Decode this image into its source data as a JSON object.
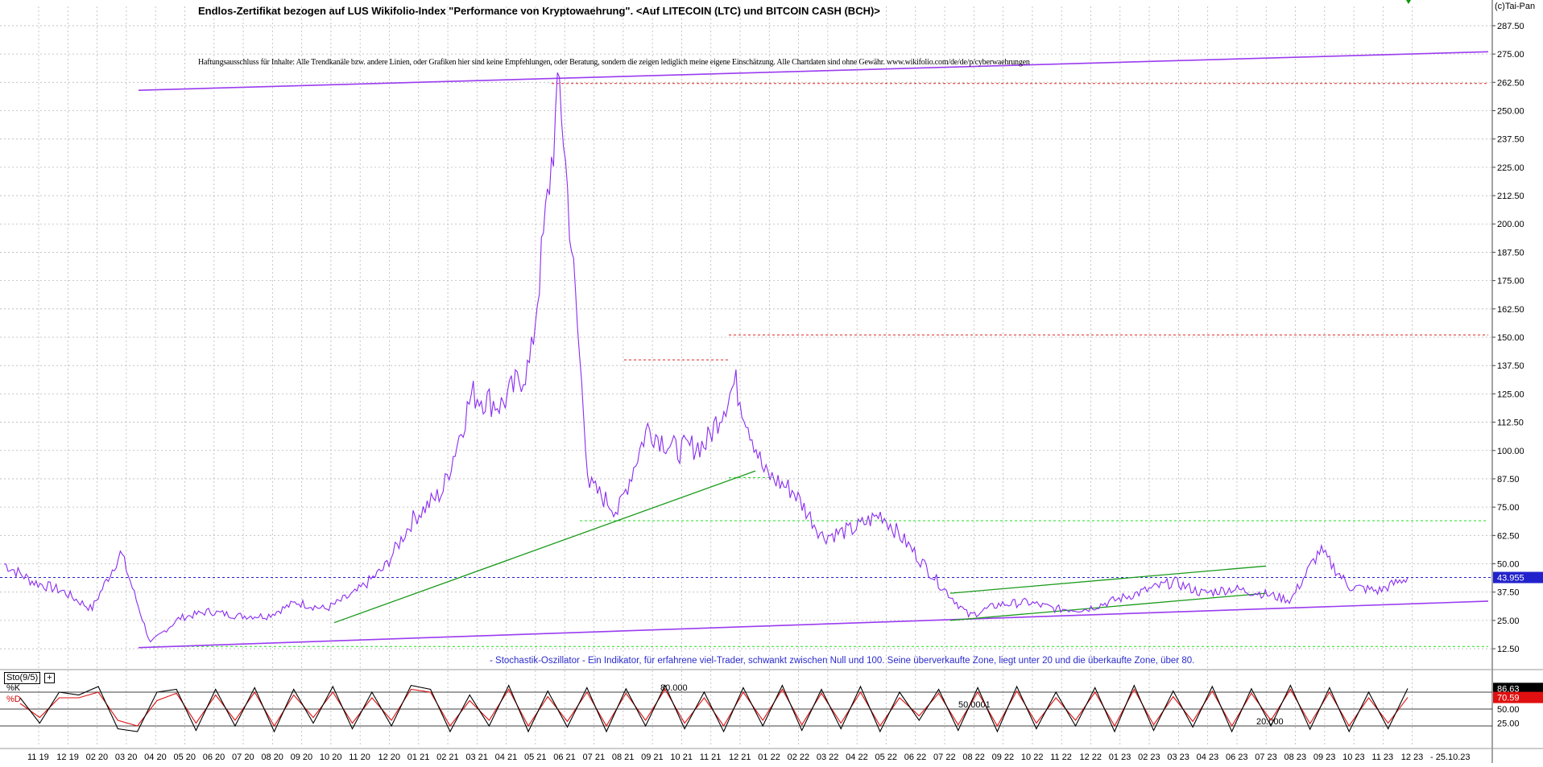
{
  "header": {
    "title": "Endlos-Zertifikat bezogen auf LUS Wikifolio-Index \"Performance von Kryptowaehrung\". <Auf LITECOIN (LTC) und BITCOIN CASH (BCH)>",
    "disclaimer": "Haftungsausschluss für Inhalte: Alle Trendkanäle bzw. andere Linien, oder Grafiken hier sind keine Empfehlungen, oder Beratung, sondern die zeigen lediglich meine eigene Einschätzung. Alle Chartdaten sind ohne Gewähr. www.wikifolio.com/de/de/p/cyberwaehrungen",
    "copyright": "(c)Tai-Pan"
  },
  "oscillator": {
    "caption": "- Stochastik-Oszillator - Ein Indikator, für erfahrene viel-Trader, schwankt zwischen Null und 100. Seine überverkaufte Zone, liegt unter 20 und die überkaufte Zone, über 80.",
    "name": "Sto(9/5)",
    "k_label": "%K",
    "d_label": "%D",
    "level_labels": [
      "80.000",
      "50.0001",
      "20.000"
    ]
  },
  "colors": {
    "price": "#8b2cf0",
    "trendline": "#9a3cf0",
    "support": "#1a9a1a",
    "red_dotted": "#e02020",
    "green_dotted": "#22dd22",
    "blue_dotted": "#2222cc",
    "stoch_k": "#000000",
    "stoch_d": "#e01010",
    "grid": "#b8b8b8",
    "arrow": "#0a9a0a"
  },
  "chart_data": [
    {
      "type": "line",
      "title": "Endlos-Zertifikat bezogen auf LUS Wikifolio-Index \"Performance von Kryptowaehrung\". <Auf LITECOIN (LTC) und BITCOIN CASH (BCH)>",
      "xlabel": "",
      "ylabel": "",
      "ylim": [
        4,
        296
      ],
      "yticks": [
        "12.50",
        "25.00",
        "37.50",
        "50.00",
        "62.50",
        "75.00",
        "87.50",
        "100.00",
        "112.50",
        "125.00",
        "137.50",
        "150.00",
        "162.50",
        "175.00",
        "187.50",
        "200.00",
        "212.50",
        "225.00",
        "237.50",
        "250.00",
        "262.50",
        "275.00",
        "287.50"
      ],
      "x_tick_labels": [
        "11 19",
        "12 19",
        "02 20",
        "03 20",
        "04 20",
        "05 20",
        "06 20",
        "07 20",
        "08 20",
        "09 20",
        "10 20",
        "11 20",
        "12 20",
        "01 21",
        "02 21",
        "03 21",
        "04 21",
        "05 21",
        "06 21",
        "07 21",
        "08 21",
        "09 21",
        "10 21",
        "11 21",
        "12 21",
        "01 22",
        "02 22",
        "03 22",
        "04 22",
        "05 22",
        "06 22",
        "07 22",
        "08 22",
        "09 22",
        "10 22",
        "11 22",
        "12 22",
        "01 23",
        "02 23",
        "03 23",
        "04 23",
        "06 23",
        "07 23",
        "08 23",
        "09 23",
        "10 23",
        "11 23",
        "12 23",
        "- 25.10.23"
      ],
      "current_value_label": "43.955",
      "current_value": 43.955,
      "series": [
        {
          "x": [
            "10 19",
            "11 19",
            "12 19",
            "01 20",
            "02 20",
            "03 20",
            "04 20",
            "05 20",
            "06 20",
            "07 20",
            "08 20",
            "09 20",
            "10 20",
            "11 20",
            "12 20",
            "01 21",
            "02 21",
            "03 21",
            "04 21",
            "05 21",
            "06 21",
            "07 21",
            "08 21",
            "09 21",
            "10 21",
            "11 21",
            "12 21",
            "01 22",
            "02 22",
            "03 22",
            "04 22",
            "05 22",
            "06 22",
            "07 22",
            "08 22",
            "09 22",
            "10 22",
            "11 22",
            "12 22",
            "01 23",
            "02 23",
            "03 23",
            "04 23",
            "05 23",
            "06 23",
            "07 23",
            "08 23",
            "09 23",
            "10 23"
          ],
          "values": [
            50,
            42,
            38,
            30,
            55,
            15,
            26,
            29,
            27,
            27,
            33,
            30,
            37,
            48,
            70,
            82,
            125,
            120,
            138,
            262,
            85,
            73,
            110,
            100,
            103,
            130,
            90,
            82,
            62,
            65,
            72,
            57,
            41,
            27,
            32,
            33,
            30,
            30,
            34,
            38,
            42,
            37,
            39,
            37,
            34,
            56,
            40,
            38,
            43.96
          ]
        }
      ],
      "annotations": {
        "upper_trendline": [
          259,
          276
        ],
        "lower_trendline": [
          13,
          33.5
        ],
        "support_trendline": [
          24,
          91
        ],
        "channel_upper": [
          37,
          49
        ],
        "channel_lower": [
          25,
          37
        ],
        "red_levels": [
          262,
          151,
          140
        ],
        "green_levels": [
          88,
          69,
          13.5
        ]
      }
    },
    {
      "type": "line",
      "title": "Sto(9/5)",
      "ylim": [
        0,
        100
      ],
      "yticks": [
        "25.00",
        "50.00"
      ],
      "levels": [
        80,
        50,
        20
      ],
      "current_k_label": "86.63",
      "current_d_label": "70.59",
      "current_k": 86.63,
      "current_d": 70.59,
      "series": [
        {
          "name": "%K",
          "values": [
            70,
            25,
            80,
            75,
            90,
            15,
            10,
            80,
            85,
            12,
            85,
            20,
            88,
            10,
            85,
            25,
            90,
            15,
            80,
            20,
            92,
            85,
            10,
            75,
            20,
            92,
            10,
            82,
            18,
            88,
            10,
            86,
            20,
            92,
            15,
            80,
            10,
            88,
            20,
            92,
            12,
            85,
            15,
            90,
            10,
            80,
            30,
            85,
            12,
            88,
            10,
            90,
            15,
            80,
            20,
            88,
            10,
            92,
            12,
            82,
            18,
            90,
            10,
            86,
            20,
            92,
            14,
            88,
            10,
            80,
            15,
            86.63
          ]
        },
        {
          "name": "%D",
          "values": [
            60,
            35,
            70,
            70,
            80,
            30,
            20,
            65,
            78,
            25,
            75,
            30,
            80,
            20,
            75,
            35,
            80,
            25,
            70,
            30,
            85,
            80,
            20,
            65,
            30,
            85,
            20,
            72,
            28,
            80,
            20,
            78,
            30,
            85,
            25,
            70,
            20,
            80,
            30,
            85,
            22,
            78,
            25,
            80,
            20,
            70,
            38,
            78,
            22,
            80,
            20,
            82,
            25,
            70,
            30,
            80,
            20,
            85,
            22,
            72,
            28,
            82,
            20,
            78,
            30,
            85,
            24,
            80,
            20,
            70,
            25,
            70.59
          ]
        }
      ]
    }
  ]
}
